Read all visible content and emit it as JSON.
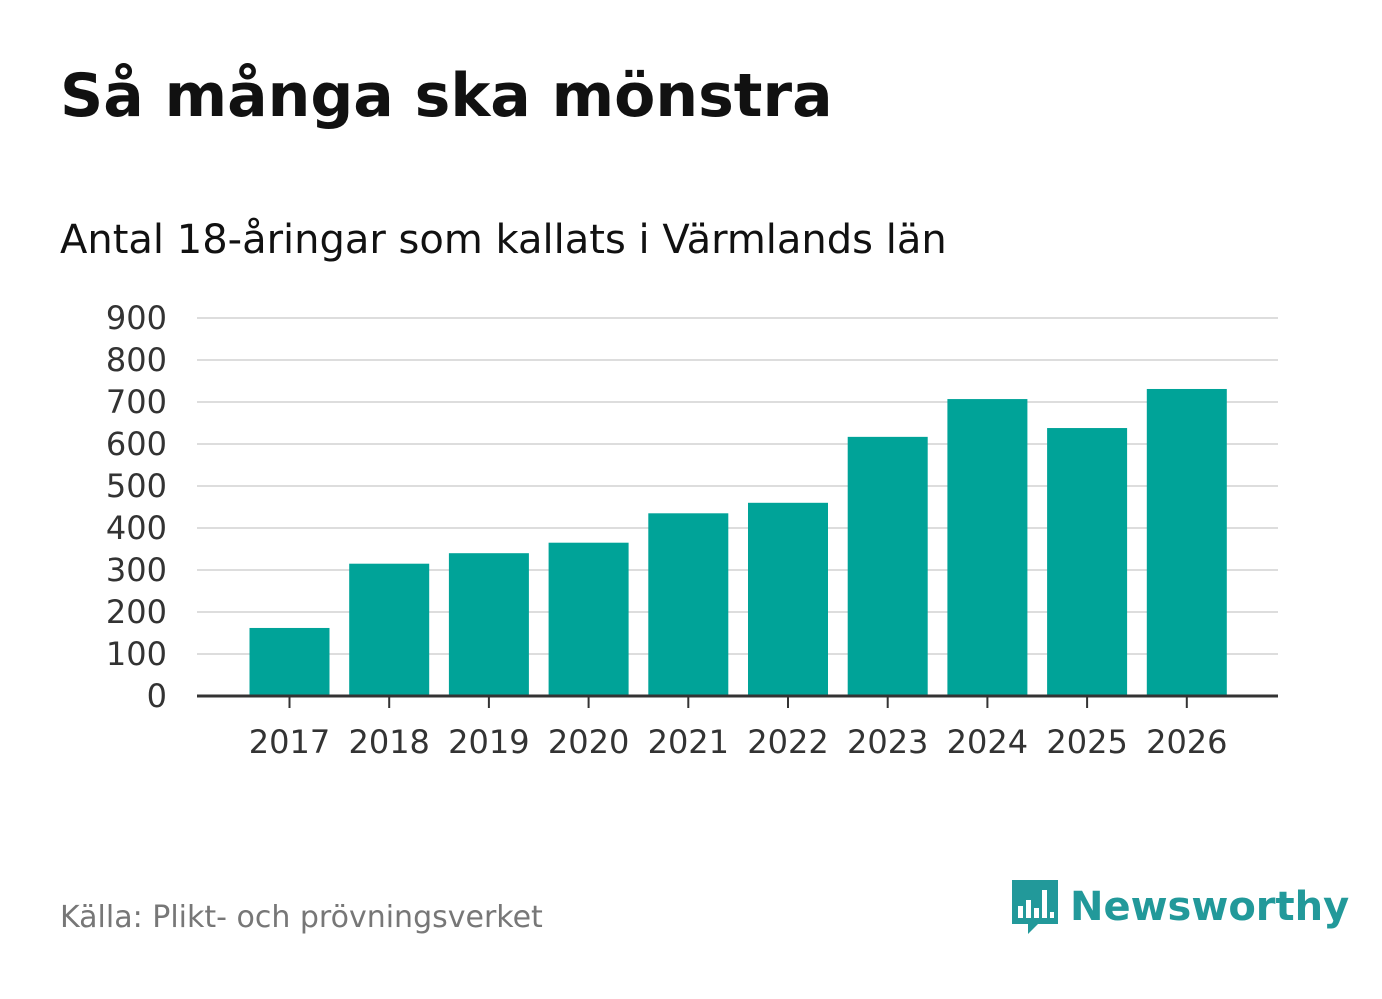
{
  "header": {
    "title": "Så många ska mönstra",
    "subtitle": "Antal 18-åringar som kallats i Värmlands län"
  },
  "footer": {
    "source": "Källa: Plikt- och prövningsverket",
    "brand": "Newsworthy",
    "brand_icon": "newsworthy-logo-icon"
  },
  "colors": {
    "bar": "#00a398",
    "grid": "#dddddd",
    "axis": "#333333",
    "brand": "#22999a"
  },
  "chart_data": {
    "type": "bar",
    "title": "Så många ska mönstra",
    "subtitle": "Antal 18-åringar som kallats i Värmlands län",
    "xlabel": "",
    "ylabel": "",
    "categories": [
      "2017",
      "2018",
      "2019",
      "2020",
      "2021",
      "2022",
      "2023",
      "2024",
      "2025",
      "2026"
    ],
    "values": [
      162,
      315,
      340,
      365,
      435,
      460,
      617,
      707,
      638,
      731
    ],
    "ylim": [
      0,
      900
    ],
    "yticks": [
      0,
      100,
      200,
      300,
      400,
      500,
      600,
      700,
      800,
      900
    ],
    "grid": true,
    "legend": "none"
  }
}
